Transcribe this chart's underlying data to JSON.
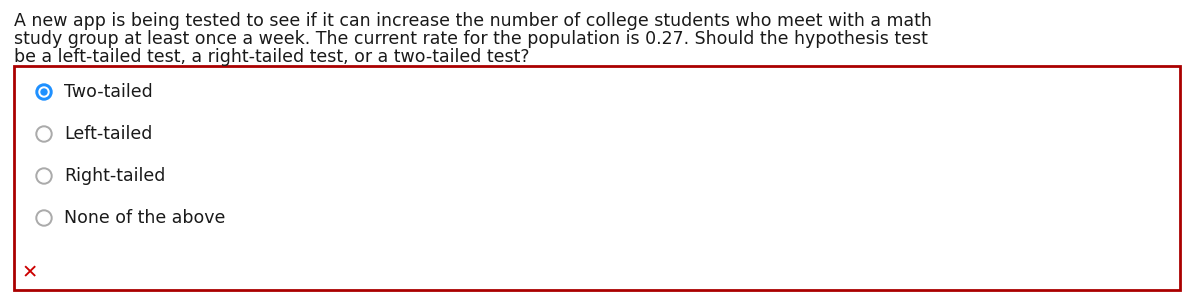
{
  "question_line1": "A new app is being tested to see if it can increase the number of college students who meet with a math",
  "question_line2": "study group at least once a week. The current rate for the population is 0.27. Should the hypothesis test",
  "question_line3": "be a left-tailed test, a right-tailed test, or a two-tailed test?",
  "options": [
    "Two-tailed",
    "Left-tailed",
    "Right-tailed",
    "None of the above"
  ],
  "selected_index": 0,
  "background_color": "#ffffff",
  "box_border_color": "#aa0000",
  "question_font_size": 12.5,
  "option_font_size": 12.5,
  "selected_radio_outer_color": "#1e90ff",
  "selected_radio_inner_color": "#ffffff",
  "selected_radio_dot_color": "#1e90ff",
  "unselected_radio_fill": "#ffffff",
  "unselected_radio_edge": "#aaaaaa",
  "x_mark_color": "#cc0000",
  "x_mark_text": "✕",
  "text_color": "#1a1a1a",
  "option_text_color": "#1a1a1a",
  "question_font_weight": "normal",
  "option_font_weight": "normal"
}
